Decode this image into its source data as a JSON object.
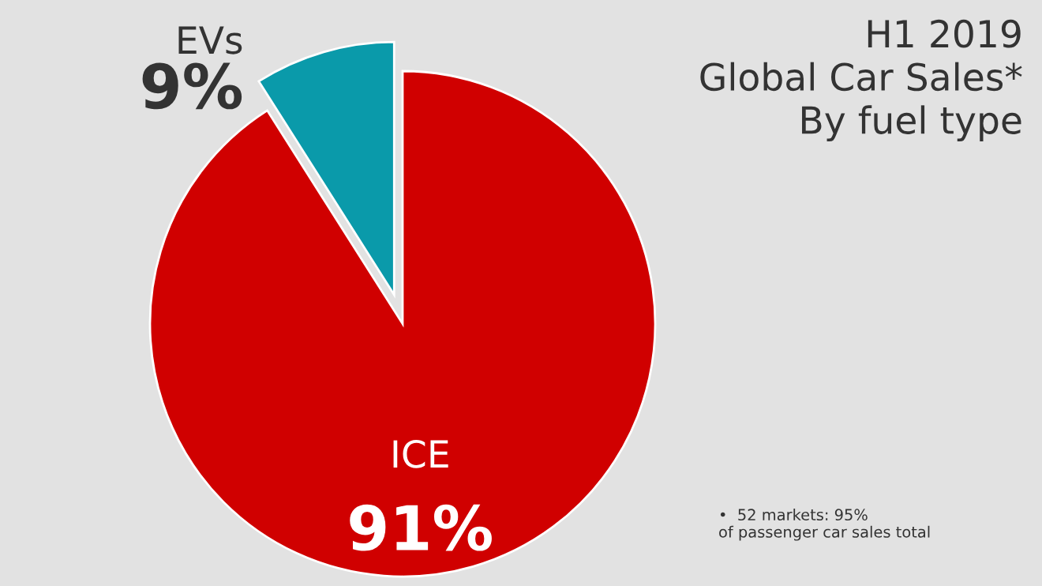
{
  "chart_data": {
    "type": "pie",
    "title": "H1 2019\nGlobal Car Sales*\nBy fuel type",
    "categories": [
      "EVs",
      "ICE"
    ],
    "values": [
      9,
      91
    ],
    "colors": [
      "#0a9aaa",
      "#d00000"
    ],
    "value_labels": [
      "9%",
      "91%"
    ],
    "legend": false,
    "annotations": [
      "•  52 markets: 95%\nof passenger car sales total"
    ]
  }
}
